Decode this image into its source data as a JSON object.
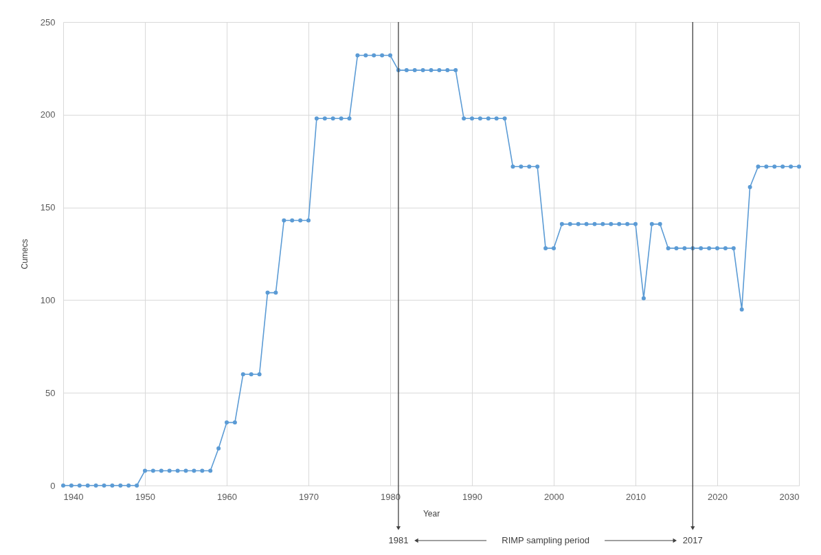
{
  "chart_data": {
    "type": "line",
    "xlabel": "Year",
    "ylabel": "Cumecs",
    "x": [
      1940,
      1941,
      1942,
      1943,
      1944,
      1945,
      1946,
      1947,
      1948,
      1949,
      1950,
      1951,
      1952,
      1953,
      1954,
      1955,
      1956,
      1957,
      1958,
      1959,
      1960,
      1961,
      1962,
      1963,
      1964,
      1965,
      1966,
      1967,
      1968,
      1969,
      1970,
      1971,
      1972,
      1973,
      1974,
      1975,
      1976,
      1977,
      1978,
      1979,
      1980,
      1981,
      1982,
      1983,
      1984,
      1985,
      1986,
      1987,
      1988,
      1989,
      1990,
      1991,
      1992,
      1993,
      1994,
      1995,
      1996,
      1997,
      1998,
      1999,
      2000,
      2001,
      2002,
      2003,
      2004,
      2005,
      2006,
      2007,
      2008,
      2009,
      2010,
      2011,
      2012,
      2013,
      2014,
      2015,
      2016,
      2017,
      2018,
      2019,
      2020,
      2021,
      2022,
      2023,
      2024,
      2025,
      2026,
      2027,
      2028,
      2029,
      2030
    ],
    "series": [
      {
        "color": "#5b9bd5",
        "values": [
          0,
          0,
          0,
          0,
          0,
          0,
          0,
          0,
          0,
          0,
          8,
          8,
          8,
          8,
          8,
          8,
          8,
          8,
          8,
          20,
          34,
          34,
          60,
          60,
          60,
          104,
          104,
          143,
          143,
          143,
          143,
          198,
          198,
          198,
          198,
          198,
          232,
          232,
          232,
          232,
          232,
          224,
          224,
          224,
          224,
          224,
          224,
          224,
          224,
          198,
          198,
          198,
          198,
          198,
          198,
          172,
          172,
          172,
          172,
          128,
          128,
          141,
          141,
          141,
          141,
          141,
          141,
          141,
          141,
          141,
          141,
          101,
          141,
          141,
          128,
          128,
          128,
          128,
          128,
          128,
          128,
          128,
          128,
          95,
          161,
          172,
          172,
          172,
          172,
          172,
          172
        ]
      }
    ],
    "xlim": [
      1940,
      2030
    ],
    "xticks": [
      1940,
      1950,
      1960,
      1970,
      1980,
      1990,
      2000,
      2010,
      2020,
      2030
    ],
    "ylim": [
      0,
      250
    ],
    "yticks": [
      0,
      50,
      100,
      150,
      200,
      250
    ],
    "grid": true,
    "marker": "circle",
    "line_style": "solid",
    "ref_lines": [
      {
        "axis": "x",
        "value": 1981,
        "label": "1981",
        "color": "#404040"
      },
      {
        "axis": "x",
        "value": 2017,
        "label": "2017",
        "color": "#404040"
      }
    ],
    "annotations": [
      "RIMP sampling period"
    ]
  }
}
